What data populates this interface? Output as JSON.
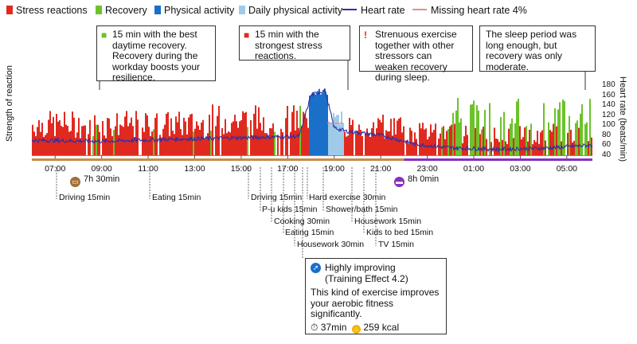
{
  "legend": [
    {
      "label": "Stress reactions",
      "kind": "bar",
      "color": "#e02a20"
    },
    {
      "label": "Recovery",
      "kind": "bar",
      "color": "#6cc22b"
    },
    {
      "label": "Physical activity",
      "kind": "bar",
      "color": "#1a6fc9"
    },
    {
      "label": "Daily physical activity",
      "kind": "bar",
      "color": "#9fcbe9"
    },
    {
      "label": "Heart rate",
      "kind": "line",
      "color": "#2b2fa8"
    },
    {
      "label": "Missing heart rate 4%",
      "kind": "line",
      "color": "#e88a86"
    }
  ],
  "callouts": [
    {
      "icon": "■",
      "icon_color": "#6cc22b",
      "text": "15 min with the best daytime recovery. Recovery during the workday boosts your resilience."
    },
    {
      "icon": "■",
      "icon_color": "#e02a20",
      "text": "15 min with the strongest stress reactions."
    },
    {
      "icon": "!",
      "icon_color": "#e02a20",
      "text": "Strenuous exercise together with other stressors can weaken recovery during sleep."
    },
    {
      "icon": "",
      "icon_color": "#000000",
      "text": "The sleep period was long enough, but recovery was only moderate."
    }
  ],
  "chart_data": {
    "type": "bar",
    "ylabel": "Strength of reaction",
    "y2label": "Heart rate (beats/min)",
    "y2_ticks": [
      40,
      60,
      80,
      100,
      120,
      140,
      160,
      180
    ],
    "x_ticks": [
      "07:00",
      "09:00",
      "11:00",
      "13:00",
      "15:00",
      "17:00",
      "19:00",
      "21:00",
      "23:00",
      "01:00",
      "03:00",
      "05:00"
    ],
    "x_range_hours": [
      6.0,
      30.1
    ],
    "segments": [
      {
        "type": "stress",
        "start": 6.0,
        "end": 13.5,
        "level": 0.42
      },
      {
        "type": "stress",
        "start": 13.5,
        "end": 17.8,
        "level": 0.48
      },
      {
        "type": "activity",
        "start": 17.9,
        "end": 18.7,
        "level": 0.95
      },
      {
        "type": "daily",
        "start": 18.7,
        "end": 19.4,
        "level": 0.6
      },
      {
        "type": "stress",
        "start": 19.4,
        "end": 22.0,
        "level": 0.4
      },
      {
        "type": "mixed",
        "start": 22.0,
        "end": 30.1,
        "level": 0.5
      }
    ],
    "heart_rate_profile": [
      [
        6.0,
        70
      ],
      [
        9,
        68
      ],
      [
        12,
        72
      ],
      [
        15,
        75
      ],
      [
        17.5,
        78
      ],
      [
        18.0,
        160
      ],
      [
        18.6,
        170
      ],
      [
        19.0,
        95
      ],
      [
        19.5,
        88
      ],
      [
        21,
        80
      ],
      [
        22.5,
        62
      ],
      [
        24,
        55
      ],
      [
        26,
        52
      ],
      [
        28,
        54
      ],
      [
        30,
        60
      ]
    ]
  },
  "sleep_badge": {
    "label": "8h 0min",
    "color": "#8a2fbe"
  },
  "drive_badge": {
    "label": "7h 30min",
    "color": "#a0703a"
  },
  "activities": [
    {
      "label": "Driving 15min"
    },
    {
      "label": "Eating 15min"
    },
    {
      "label": "Driving 15min"
    },
    {
      "label": "P-u kids 15min"
    },
    {
      "label": "Cooking 30min"
    },
    {
      "label": "Eating 15min"
    },
    {
      "label": "Housework 30min"
    },
    {
      "label": "Hard exercise 30min"
    },
    {
      "label": "Shower/bath 15min"
    },
    {
      "label": "Housework 15min"
    },
    {
      "label": "Kids to bed 15min"
    },
    {
      "label": "TV 15min"
    }
  ],
  "exercise": {
    "title": "Highly improving",
    "subtitle": "(Training Effect 4.2)",
    "body": "This kind of exercise improves your aerobic fitness significantly.",
    "duration": "37min",
    "kcal": "259 kcal"
  }
}
